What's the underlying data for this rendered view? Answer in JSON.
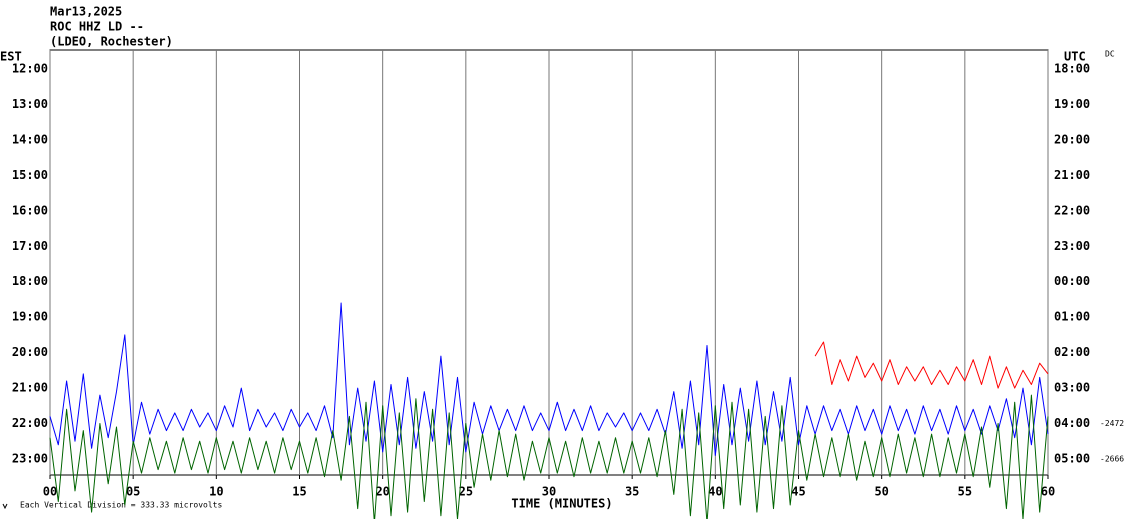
{
  "chart_data": {
    "type": "helicorder",
    "title": [
      "Mar13,2025",
      "ROC HHZ LD --",
      "(LDEO, Rochester)"
    ],
    "left_axis_label": "EST",
    "right_axis_label": "UTC",
    "corner_label": "DC",
    "x_label": "TIME (MINUTES)",
    "note": "Each Vertical Division =  333.33 microvolts",
    "left_rows": [
      "12:00",
      "13:00",
      "14:00",
      "15:00",
      "16:00",
      "17:00",
      "18:00",
      "19:00",
      "20:00",
      "21:00",
      "22:00",
      "23:00"
    ],
    "right_rows": [
      "18:00",
      "19:00",
      "20:00",
      "21:00",
      "22:00",
      "23:00",
      "00:00",
      "01:00",
      "02:00",
      "03:00",
      "04:00",
      "05:00"
    ],
    "xlim": [
      0,
      60
    ],
    "xticks": [
      {
        "value": 0,
        "label": "00"
      },
      {
        "value": 5,
        "label": "05"
      },
      10,
      15,
      20,
      25,
      30,
      35,
      40,
      45,
      50,
      55,
      60
    ],
    "x": [
      0,
      0.5,
      1,
      1.5,
      2,
      2.5,
      3,
      3.5,
      4,
      4.5,
      5,
      5.5,
      6,
      6.5,
      7,
      7.5,
      8,
      8.5,
      9,
      9.5,
      10,
      10.5,
      11,
      11.5,
      12,
      12.5,
      13,
      13.5,
      14,
      14.5,
      15,
      15.5,
      16,
      16.5,
      17,
      17.5,
      18,
      18.5,
      19,
      19.5,
      20,
      20.5,
      21,
      21.5,
      22,
      22.5,
      23,
      23.5,
      24,
      24.5,
      25,
      25.5,
      26,
      26.5,
      27,
      27.5,
      28,
      28.5,
      29,
      29.5,
      30,
      30.5,
      31,
      31.5,
      32,
      32.5,
      33,
      33.5,
      34,
      34.5,
      35,
      35.5,
      36,
      36.5,
      37,
      37.5,
      38,
      38.5,
      39,
      39.5,
      40,
      40.5,
      41,
      41.5,
      42,
      42.5,
      43,
      43.5,
      44,
      44.5,
      45,
      45.5,
      46,
      46.5,
      47,
      47.5,
      48,
      48.5,
      49,
      49.5,
      50,
      50.5,
      51,
      51.5,
      52,
      52.5,
      53,
      53.5,
      54,
      54.5,
      55,
      55.5,
      56,
      56.5,
      57,
      57.5,
      58,
      58.5,
      59,
      59.5,
      60
    ],
    "series": [
      {
        "row": "21:00",
        "color": "#ff0000",
        "values": [
          null,
          null,
          null,
          null,
          null,
          null,
          null,
          null,
          null,
          null,
          null,
          null,
          null,
          null,
          null,
          null,
          null,
          null,
          null,
          null,
          null,
          null,
          null,
          null,
          null,
          null,
          null,
          null,
          null,
          null,
          null,
          null,
          null,
          null,
          null,
          null,
          null,
          null,
          null,
          null,
          null,
          null,
          null,
          null,
          null,
          null,
          null,
          null,
          null,
          null,
          null,
          null,
          null,
          null,
          null,
          null,
          null,
          null,
          null,
          null,
          null,
          null,
          null,
          null,
          null,
          null,
          null,
          null,
          null,
          null,
          null,
          null,
          null,
          null,
          null,
          null,
          null,
          null,
          null,
          null,
          null,
          null,
          null,
          null,
          null,
          null,
          null,
          null,
          null,
          null,
          null,
          null,
          0.9,
          1.3,
          0.1,
          0.8,
          0.2,
          0.9,
          0.3,
          0.7,
          0.2,
          0.8,
          0.1,
          0.6,
          0.2,
          0.6,
          0.1,
          0.5,
          0.1,
          0.6,
          0.2,
          0.8,
          0.1,
          0.9,
          0.0,
          0.6,
          0.0,
          0.5,
          0.1,
          0.7,
          0.4
        ]
      },
      {
        "row": "22:00",
        "color": "#0000ff",
        "mean": -2472,
        "values": [
          0.2,
          -0.6,
          1.2,
          -0.5,
          1.4,
          -0.7,
          0.8,
          -0.4,
          0.9,
          2.5,
          -0.6,
          0.6,
          -0.3,
          0.4,
          -0.2,
          0.3,
          -0.2,
          0.4,
          -0.1,
          0.3,
          -0.2,
          0.5,
          -0.1,
          1.0,
          -0.2,
          0.4,
          -0.1,
          0.3,
          -0.2,
          0.4,
          -0.1,
          0.3,
          -0.2,
          0.5,
          -0.4,
          3.4,
          -0.6,
          1.0,
          -0.5,
          1.2,
          -0.8,
          1.1,
          -0.6,
          1.3,
          -0.7,
          0.9,
          -0.5,
          1.9,
          -0.6,
          1.3,
          -0.8,
          0.6,
          -0.3,
          0.5,
          -0.2,
          0.4,
          -0.2,
          0.5,
          -0.2,
          0.3,
          -0.2,
          0.6,
          -0.2,
          0.4,
          -0.2,
          0.5,
          -0.2,
          0.3,
          -0.1,
          0.3,
          -0.2,
          0.3,
          -0.2,
          0.4,
          -0.3,
          0.9,
          -0.7,
          1.2,
          -0.6,
          2.2,
          -0.9,
          1.1,
          -0.6,
          1.0,
          -0.5,
          1.2,
          -0.6,
          0.9,
          -0.5,
          1.3,
          -0.6,
          0.5,
          -0.3,
          0.5,
          -0.2,
          0.4,
          -0.3,
          0.5,
          -0.2,
          0.4,
          -0.3,
          0.5,
          -0.2,
          0.4,
          -0.3,
          0.5,
          -0.2,
          0.4,
          -0.3,
          0.5,
          -0.2,
          0.4,
          -0.3,
          0.5,
          -0.2,
          0.7,
          -0.4,
          1.0,
          -0.6,
          1.3,
          -0.3
        ]
      },
      {
        "row": "23:00",
        "color": "#006400",
        "mean": -2666,
        "values": [
          0.6,
          -1.2,
          1.4,
          -0.9,
          0.8,
          -1.5,
          1.0,
          -0.7,
          0.9,
          -1.3,
          0.5,
          -0.4,
          0.6,
          -0.3,
          0.5,
          -0.4,
          0.6,
          -0.3,
          0.5,
          -0.4,
          0.6,
          -0.3,
          0.5,
          -0.4,
          0.6,
          -0.3,
          0.5,
          -0.4,
          0.6,
          -0.3,
          0.5,
          -0.4,
          0.6,
          -0.5,
          0.8,
          -0.6,
          1.2,
          -1.4,
          1.6,
          -1.8,
          1.5,
          -1.6,
          1.3,
          -1.5,
          1.7,
          -1.2,
          1.4,
          -1.6,
          1.3,
          -1.7,
          1.0,
          -0.8,
          0.7,
          -0.6,
          0.8,
          -0.5,
          0.7,
          -0.6,
          0.5,
          -0.4,
          0.6,
          -0.4,
          0.5,
          -0.5,
          0.6,
          -0.4,
          0.5,
          -0.4,
          0.6,
          -0.4,
          0.5,
          -0.4,
          0.6,
          -0.5,
          0.8,
          -1.0,
          1.4,
          -1.6,
          1.3,
          -1.8,
          1.5,
          -1.4,
          1.6,
          -1.3,
          1.4,
          -1.5,
          1.2,
          -1.4,
          1.5,
          -1.3,
          0.8,
          -0.6,
          0.7,
          -0.5,
          0.6,
          -0.5,
          0.7,
          -0.6,
          0.5,
          -0.5,
          0.6,
          -0.5,
          0.7,
          -0.4,
          0.6,
          -0.5,
          0.7,
          -0.5,
          0.6,
          -0.4,
          0.7,
          -0.5,
          0.9,
          -0.8,
          1.0,
          -1.4,
          1.6,
          -1.7,
          1.8,
          -1.5,
          1.2
        ]
      }
    ]
  }
}
